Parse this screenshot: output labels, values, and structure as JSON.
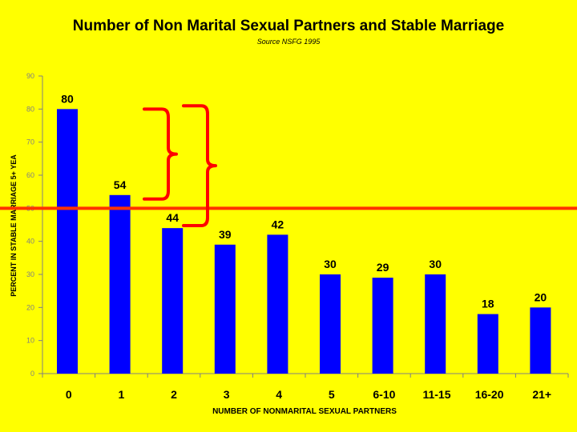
{
  "chart_data": {
    "type": "bar",
    "title": "Number of Non Marital Sexual Partners and Stable Marriage",
    "subtitle": "Source NSFG 1995",
    "xlabel": "NUMBER OF NONMARITAL SEXUAL PARTNERS",
    "ylabel": "PERCENT IN STABLE MARRIAGE 5+ YEA",
    "categories": [
      "0",
      "1",
      "2",
      "3",
      "4",
      "5",
      "6-10",
      "11-15",
      "16-20",
      "21+"
    ],
    "values": [
      80,
      54,
      44,
      39,
      42,
      30,
      29,
      30,
      18,
      20
    ],
    "data_labels": [
      "80",
      "54",
      "44",
      "39",
      "42",
      "30",
      "29",
      "30",
      "18",
      "20"
    ],
    "ylim": [
      0,
      90
    ],
    "yticks": [
      "0",
      "10",
      "20",
      "30",
      "40",
      "50",
      "60",
      "70",
      "80",
      "90"
    ],
    "grid": false,
    "legend": "none",
    "reference_line": {
      "y": 50,
      "color": "#ff3300"
    },
    "annotations": [
      {
        "type": "brace",
        "from_category": "0",
        "to_category": "1",
        "color": "#ff0000"
      },
      {
        "type": "brace",
        "from_category": "0",
        "to_category": "2",
        "color": "#ff0000"
      }
    ],
    "colors": {
      "background": "#ffff00",
      "bar": "#0000ff",
      "axis": "#808080",
      "text": "#000000"
    }
  }
}
